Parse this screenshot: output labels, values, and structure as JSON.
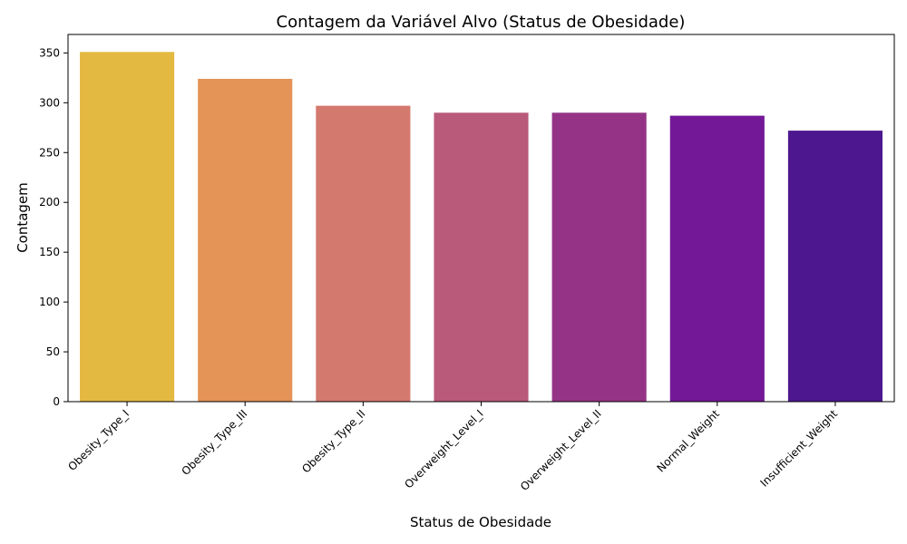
{
  "chart_data": {
    "type": "bar",
    "title": "Contagem da Variável Alvo (Status de Obesidade)",
    "xlabel": "Status de Obesidade",
    "ylabel": "Contagem",
    "categories": [
      "Obesity_Type_I",
      "Obesity_Type_III",
      "Obesity_Type_II",
      "Overweight_Level_I",
      "Overweight_Level_II",
      "Normal_Weight",
      "Insufficient_Weight"
    ],
    "values": [
      351,
      324,
      297,
      290,
      290,
      287,
      272
    ],
    "colors": [
      "#e4b942",
      "#e49456",
      "#d4796e",
      "#b95a7b",
      "#953487",
      "#731896",
      "#4d188f"
    ],
    "yticks": [
      0,
      50,
      100,
      150,
      200,
      250,
      300,
      350
    ],
    "ylim": [
      0,
      368.55
    ],
    "grid": false,
    "legend": "none"
  }
}
